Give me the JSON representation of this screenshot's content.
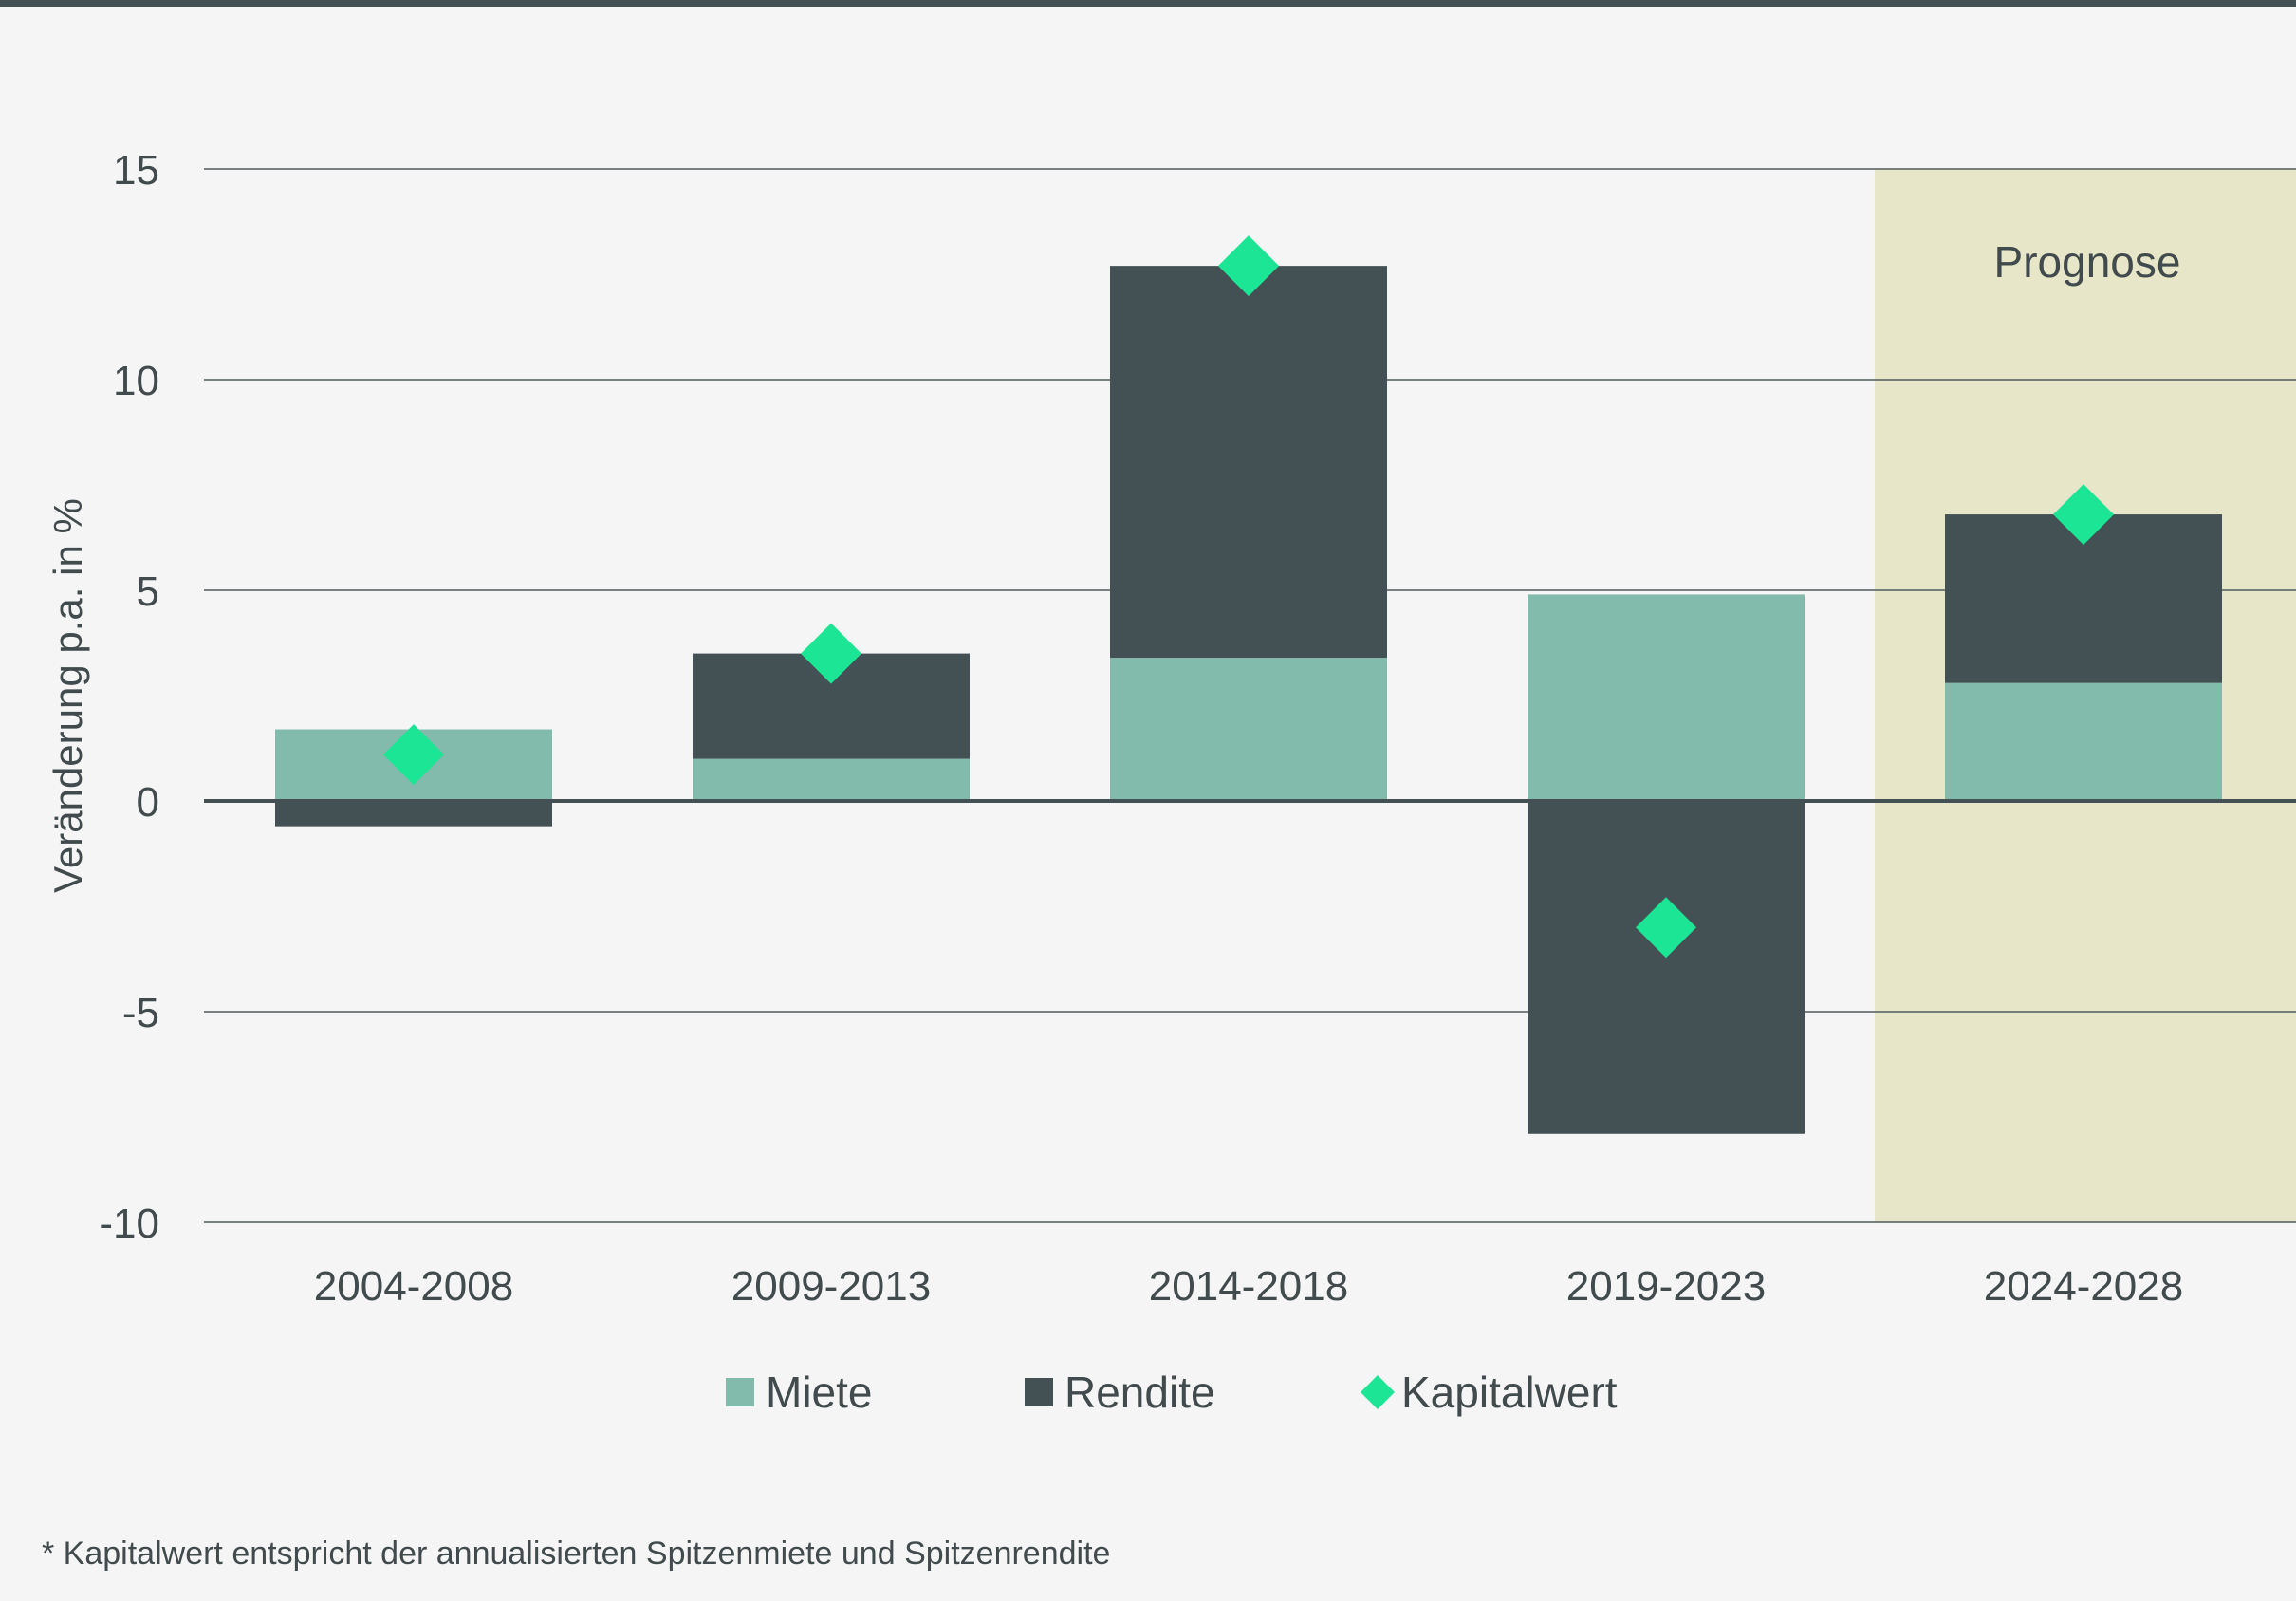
{
  "chart_data": {
    "type": "bar",
    "stacked": true,
    "ylabel": "Veränderung p.a. in %",
    "ylim": [
      -10,
      15
    ],
    "yticks": [
      15,
      10,
      5,
      0,
      -5,
      -10
    ],
    "categories": [
      "2004-2008",
      "2009-2013",
      "2014-2018",
      "2019-2023",
      "2024-2028"
    ],
    "series": [
      {
        "name": "Miete",
        "kind": "bar",
        "color": "#82bbab",
        "values": [
          1.7,
          1.0,
          3.4,
          4.9,
          2.8
        ]
      },
      {
        "name": "Rendite",
        "kind": "bar",
        "color": "#435154",
        "values": [
          -0.6,
          2.5,
          9.3,
          -7.9,
          4.0
        ]
      },
      {
        "name": "Kapitalwert",
        "kind": "marker",
        "marker": "diamond",
        "color": "#1de596",
        "values": [
          1.1,
          3.5,
          12.7,
          -3.0,
          6.8
        ]
      }
    ],
    "forecast": {
      "label": "Prognose",
      "from_category": "2024-2028",
      "color": "#e8e6c8"
    },
    "grid": true,
    "legend_position": "bottom"
  },
  "footnote": "* Kapitalwert entspricht der annualisierten Spitzenmiete und Spitzenrendite",
  "colors": {
    "background": "#f5f5f5",
    "topbar": "#435154",
    "text": "#414a4c",
    "axis": "#435154"
  }
}
